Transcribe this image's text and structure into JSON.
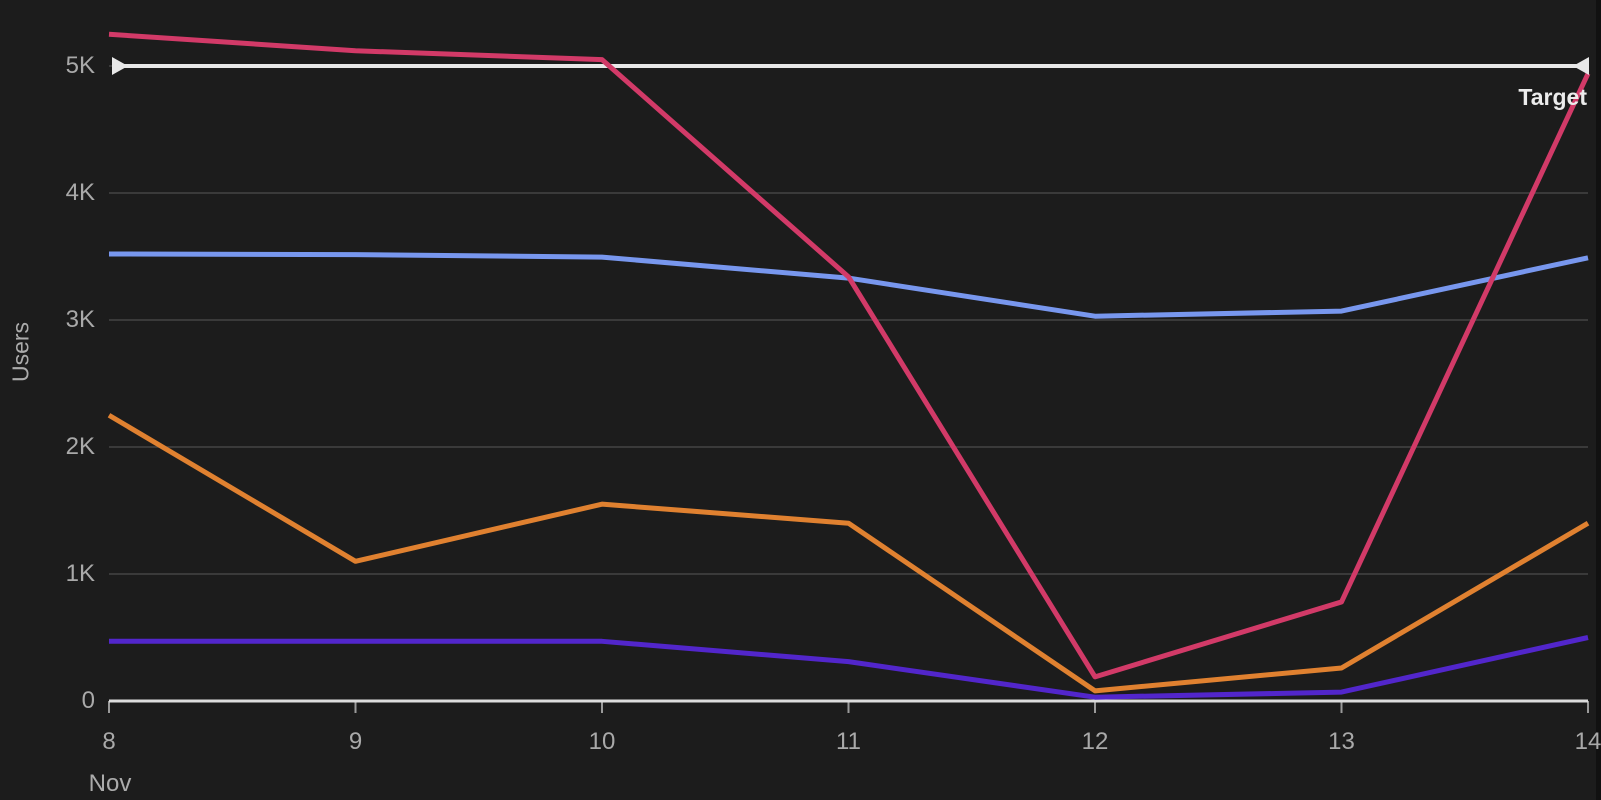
{
  "chart_data": {
    "type": "line",
    "title": "",
    "ylabel": "Users",
    "xlabel_month": "Nov",
    "x": [
      8,
      9,
      10,
      11,
      12,
      13,
      14
    ],
    "x_tick_labels": [
      "8",
      "9",
      "10",
      "11",
      "12",
      "13",
      "14"
    ],
    "y_ticks": [
      {
        "value": 0,
        "label": "0"
      },
      {
        "value": 1000,
        "label": "1K"
      },
      {
        "value": 2000,
        "label": "2K"
      },
      {
        "value": 3000,
        "label": "3K"
      },
      {
        "value": 4000,
        "label": "4K"
      },
      {
        "value": 5000,
        "label": "5K"
      }
    ],
    "ylim": [
      0,
      5520
    ],
    "grid": true,
    "legend": "none",
    "series": [
      {
        "name": "blue",
        "color": "#7897ee",
        "values": [
          3520,
          3515,
          3495,
          3330,
          3030,
          3070,
          3490
        ]
      },
      {
        "name": "orange",
        "color": "#e08130",
        "values": [
          2250,
          1100,
          1550,
          1400,
          80,
          260,
          1400
        ]
      },
      {
        "name": "purple",
        "color": "#5226cb",
        "values": [
          470,
          470,
          470,
          310,
          30,
          70,
          500
        ]
      },
      {
        "name": "pink",
        "color": "#d23a68",
        "values": [
          5250,
          5120,
          5050,
          3340,
          190,
          780,
          4940
        ]
      }
    ],
    "reference_line": {
      "label": "Target",
      "value": 5000,
      "color": "#e8e8e8"
    }
  },
  "colors": {
    "background": "#1c1c1c",
    "gridline": "#454545",
    "axis_line": "#dcdcdc",
    "tick_mark": "#9a9a9a",
    "tick_text": "#a9a9a9"
  }
}
